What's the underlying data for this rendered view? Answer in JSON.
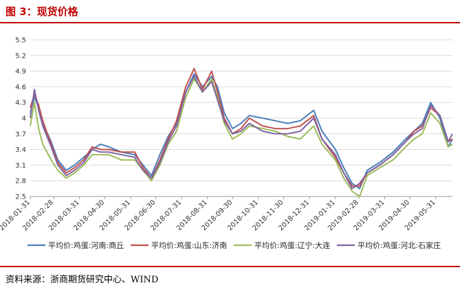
{
  "title": "图 3：现货价格",
  "source": "资料来源：浙商期货研究中心、WIND",
  "chart_data": {
    "type": "line",
    "title": "",
    "xlabel": "",
    "ylabel": "",
    "ylim": [
      2.5,
      5.5
    ],
    "yticks": [
      2.5,
      2.8,
      3.1,
      3.4,
      3.7,
      4,
      4.3,
      4.6,
      4.9,
      5.2,
      5.5
    ],
    "xlim": [
      "2018-01-31",
      "2019-06-20"
    ],
    "xticks": [
      "2018-01-31",
      "2018-02-28",
      "2018-03-31",
      "2018-04-30",
      "2018-05-31",
      "2018-06-30",
      "2018-07-31",
      "2018-08-31",
      "2018-09-30",
      "2018-10-31",
      "2018-11-30",
      "2018-12-31",
      "2019-01-31",
      "2019-02-28",
      "2019-03-31",
      "2019-04-30",
      "2019-05-31"
    ],
    "grid": true,
    "legend": "bottom",
    "series": [
      {
        "name": "平均价:鸡蛋:河南:商丘",
        "color": "#4a7ebb",
        "x": [
          "2018-01-31",
          "2018-02-05",
          "2018-02-10",
          "2018-02-15",
          "2018-02-25",
          "2018-03-05",
          "2018-03-15",
          "2018-03-25",
          "2018-04-05",
          "2018-04-15",
          "2018-04-25",
          "2018-05-05",
          "2018-05-20",
          "2018-06-05",
          "2018-06-15",
          "2018-06-25",
          "2018-07-05",
          "2018-07-15",
          "2018-07-25",
          "2018-08-05",
          "2018-08-15",
          "2018-08-25",
          "2018-09-05",
          "2018-09-12",
          "2018-09-20",
          "2018-09-30",
          "2018-10-10",
          "2018-10-20",
          "2018-11-05",
          "2018-11-20",
          "2018-12-05",
          "2018-12-20",
          "2019-01-05",
          "2019-01-15",
          "2019-01-31",
          "2019-02-10",
          "2019-02-20",
          "2019-03-01",
          "2019-03-10",
          "2019-03-25",
          "2019-04-10",
          "2019-04-25",
          "2019-05-05",
          "2019-05-15",
          "2019-05-25",
          "2019-06-05",
          "2019-06-15",
          "2019-06-20"
        ],
        "values": [
          4.1,
          4.4,
          4.2,
          3.9,
          3.55,
          3.2,
          3.0,
          3.1,
          3.25,
          3.4,
          3.5,
          3.45,
          3.35,
          3.3,
          3.1,
          2.9,
          3.3,
          3.65,
          3.9,
          4.5,
          4.85,
          4.6,
          4.8,
          4.6,
          4.1,
          3.8,
          3.9,
          4.05,
          4.0,
          3.95,
          3.9,
          3.95,
          4.15,
          3.75,
          3.4,
          3.05,
          2.75,
          2.65,
          3.0,
          3.15,
          3.35,
          3.6,
          3.75,
          3.9,
          4.3,
          4.0,
          3.45,
          3.6
        ]
      },
      {
        "name": "平均价:鸡蛋:山东:济南",
        "color": "#c0504d",
        "x": [
          "2018-01-31",
          "2018-02-05",
          "2018-02-10",
          "2018-02-15",
          "2018-02-25",
          "2018-03-05",
          "2018-03-15",
          "2018-03-25",
          "2018-04-05",
          "2018-04-15",
          "2018-04-25",
          "2018-05-05",
          "2018-05-20",
          "2018-06-05",
          "2018-06-15",
          "2018-06-25",
          "2018-07-05",
          "2018-07-15",
          "2018-07-25",
          "2018-08-05",
          "2018-08-15",
          "2018-08-25",
          "2018-09-05",
          "2018-09-12",
          "2018-09-20",
          "2018-09-30",
          "2018-10-10",
          "2018-10-20",
          "2018-11-05",
          "2018-11-20",
          "2018-12-05",
          "2018-12-20",
          "2019-01-05",
          "2019-01-15",
          "2019-01-31",
          "2019-02-10",
          "2019-02-20",
          "2019-03-01",
          "2019-03-10",
          "2019-03-25",
          "2019-04-10",
          "2019-04-25",
          "2019-05-05",
          "2019-05-15",
          "2019-05-25",
          "2019-06-05",
          "2019-06-15",
          "2019-06-20"
        ],
        "values": [
          4.2,
          4.45,
          4.25,
          3.95,
          3.5,
          3.15,
          2.95,
          3.05,
          3.2,
          3.45,
          3.4,
          3.4,
          3.35,
          3.35,
          3.05,
          2.85,
          3.2,
          3.6,
          3.95,
          4.6,
          4.95,
          4.55,
          4.9,
          4.5,
          4.0,
          3.7,
          3.8,
          4.0,
          3.85,
          3.8,
          3.8,
          3.85,
          4.05,
          3.6,
          3.25,
          2.95,
          2.7,
          2.7,
          2.95,
          3.1,
          3.3,
          3.55,
          3.75,
          3.85,
          4.2,
          4.05,
          3.55,
          3.6
        ]
      },
      {
        "name": "平均价:鸡蛋:辽宁:大连",
        "color": "#9bbb59",
        "x": [
          "2018-01-31",
          "2018-02-05",
          "2018-02-10",
          "2018-02-15",
          "2018-02-25",
          "2018-03-05",
          "2018-03-15",
          "2018-03-25",
          "2018-04-05",
          "2018-04-15",
          "2018-04-25",
          "2018-05-05",
          "2018-05-20",
          "2018-06-05",
          "2018-06-15",
          "2018-06-25",
          "2018-07-05",
          "2018-07-15",
          "2018-07-25",
          "2018-08-05",
          "2018-08-15",
          "2018-08-25",
          "2018-09-05",
          "2018-09-12",
          "2018-09-20",
          "2018-09-30",
          "2018-10-10",
          "2018-10-20",
          "2018-11-05",
          "2018-11-20",
          "2018-12-05",
          "2018-12-20",
          "2019-01-05",
          "2019-01-15",
          "2019-01-31",
          "2019-02-10",
          "2019-02-20",
          "2019-03-01",
          "2019-03-10",
          "2019-03-25",
          "2019-04-10",
          "2019-04-25",
          "2019-05-05",
          "2019-05-15",
          "2019-05-25",
          "2019-06-05",
          "2019-06-15",
          "2019-06-20"
        ],
        "values": [
          3.85,
          4.3,
          3.8,
          3.5,
          3.2,
          3.0,
          2.85,
          2.95,
          3.1,
          3.3,
          3.3,
          3.3,
          3.2,
          3.2,
          3.0,
          2.8,
          3.1,
          3.5,
          3.75,
          4.4,
          4.75,
          4.5,
          4.75,
          4.4,
          3.9,
          3.6,
          3.7,
          3.85,
          3.8,
          3.75,
          3.65,
          3.6,
          3.85,
          3.5,
          3.2,
          2.85,
          2.6,
          2.5,
          2.9,
          3.05,
          3.2,
          3.45,
          3.6,
          3.7,
          4.1,
          3.9,
          3.45,
          3.5
        ]
      },
      {
        "name": "平均价:鸡蛋:河北:石家庄",
        "color": "#8064a2",
        "x": [
          "2018-01-31",
          "2018-02-05",
          "2018-02-10",
          "2018-02-15",
          "2018-02-25",
          "2018-03-05",
          "2018-03-15",
          "2018-03-25",
          "2018-04-05",
          "2018-04-15",
          "2018-04-25",
          "2018-05-05",
          "2018-05-20",
          "2018-06-05",
          "2018-06-15",
          "2018-06-25",
          "2018-07-05",
          "2018-07-15",
          "2018-07-25",
          "2018-08-05",
          "2018-08-15",
          "2018-08-25",
          "2018-09-05",
          "2018-09-12",
          "2018-09-20",
          "2018-09-30",
          "2018-10-10",
          "2018-10-20",
          "2018-11-05",
          "2018-11-20",
          "2018-12-05",
          "2018-12-20",
          "2019-01-05",
          "2019-01-15",
          "2019-01-31",
          "2019-02-10",
          "2019-02-20",
          "2019-03-01",
          "2019-03-10",
          "2019-03-25",
          "2019-04-10",
          "2019-04-25",
          "2019-05-05",
          "2019-05-15",
          "2019-05-25",
          "2019-06-05",
          "2019-06-15",
          "2019-06-20"
        ],
        "values": [
          4.0,
          4.55,
          4.15,
          3.85,
          3.45,
          3.1,
          2.9,
          3.0,
          3.15,
          3.4,
          3.35,
          3.35,
          3.3,
          3.25,
          3.0,
          2.85,
          3.15,
          3.55,
          3.85,
          4.5,
          4.8,
          4.5,
          4.7,
          4.35,
          3.95,
          3.7,
          3.75,
          3.9,
          3.75,
          3.7,
          3.7,
          3.75,
          4.0,
          3.6,
          3.3,
          2.95,
          2.65,
          2.75,
          2.95,
          3.1,
          3.3,
          3.55,
          3.7,
          3.8,
          4.25,
          4.05,
          3.55,
          3.7
        ]
      }
    ]
  }
}
